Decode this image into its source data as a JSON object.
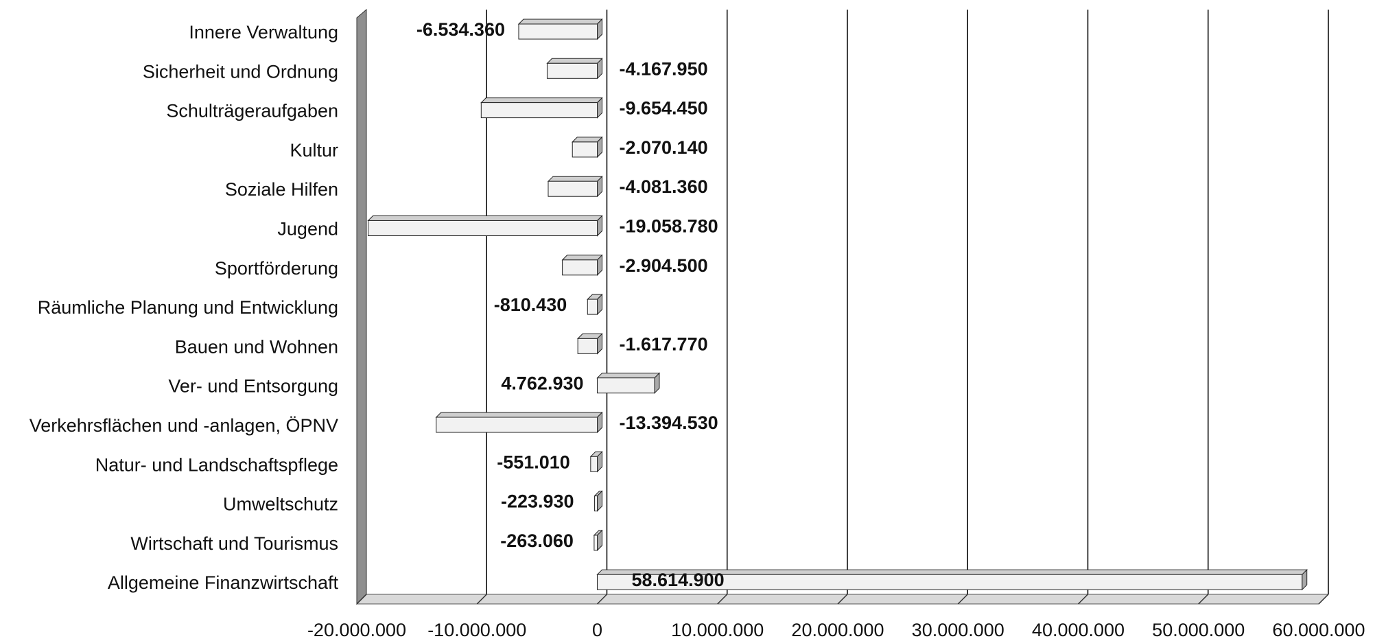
{
  "chart_data": {
    "type": "bar",
    "orientation": "horizontal",
    "style": "3d",
    "title": "",
    "xlabel": "",
    "ylabel": "",
    "xlim": [
      -20000000,
      60000000
    ],
    "grid": true,
    "legend": "none",
    "categories": [
      "Innere Verwaltung",
      "Sicherheit und Ordnung",
      "Schulträgeraufgaben",
      "Kultur",
      "Soziale Hilfen",
      "Jugend",
      "Sportförderung",
      "Räumliche Planung und Entwicklung",
      "Bauen und Wohnen",
      "Ver- und Entsorgung",
      "Verkehrsflächen und -anlagen, ÖPNV",
      "Natur- und Landschaftspflege",
      "Umweltschutz",
      "Wirtschaft und Tourismus",
      "Allgemeine Finanzwirtschaft"
    ],
    "values": [
      -6534360,
      -4167950,
      -9654450,
      -2070140,
      -4081360,
      -19058780,
      -2904500,
      -810430,
      -1617770,
      4762930,
      -13394530,
      -551010,
      -223930,
      -263060,
      58614900
    ],
    "data_labels": [
      "-6.534.360",
      "-4.167.950",
      "-9.654.450",
      "-2.070.140",
      "-4.081.360",
      "-19.058.780",
      "-2.904.500",
      "-810.430",
      "-1.617.770",
      "4.762.930",
      "-13.394.530",
      "-551.010",
      "-223.930",
      "-263.060",
      "58.614.900"
    ],
    "x_ticks": [
      -20000000,
      -10000000,
      0,
      10000000,
      20000000,
      30000000,
      40000000,
      50000000,
      60000000
    ],
    "x_tick_labels": [
      "-20.000.000",
      "-10.000.000",
      "0",
      "10.000.000",
      "20.000.000",
      "30.000.000",
      "40.000.000",
      "50.000.000",
      "60.000.000"
    ],
    "colors": {
      "bar_face": "#f2f2f2",
      "bar_top": "#cfcfcf",
      "bar_side": "#a9a9a9",
      "wall": "#8f8f8f",
      "floor": "#d9d9d9",
      "grid": "#000000"
    }
  }
}
